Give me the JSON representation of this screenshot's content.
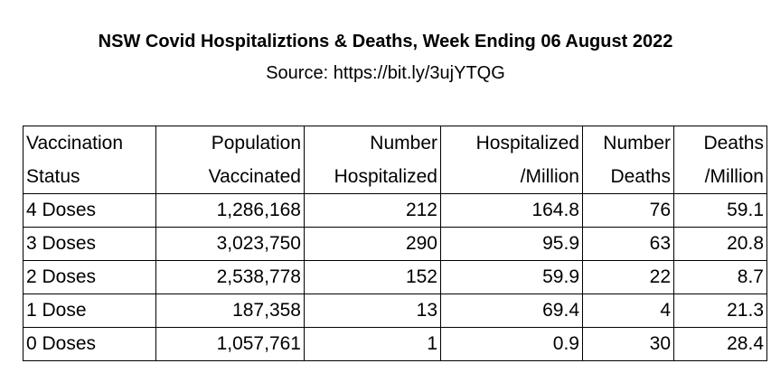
{
  "header": {
    "title": "NSW Covid Hospitaliztions & Deaths, Week Ending 06 August 2022",
    "source": "Source: https://bit.ly/3ujYTQG"
  },
  "table": {
    "columns": [
      {
        "line1": "Vaccination",
        "line2": "Status"
      },
      {
        "line1": "Population",
        "line2": "Vaccinated"
      },
      {
        "line1": "Number",
        "line2": "Hospitalized"
      },
      {
        "line1": "Hospitalized",
        "line2": "/Million"
      },
      {
        "line1": "Number",
        "line2": "Deaths"
      },
      {
        "line1": "Deaths",
        "line2": "/Million"
      }
    ],
    "rows": [
      {
        "status": "4 Doses",
        "population": "1,286,168",
        "hospitalized": "212",
        "hosp_per_million": "164.8",
        "deaths": "76",
        "deaths_per_million": "59.1"
      },
      {
        "status": "3 Doses",
        "population": "3,023,750",
        "hospitalized": "290",
        "hosp_per_million": "95.9",
        "deaths": "63",
        "deaths_per_million": "20.8"
      },
      {
        "status": "2 Doses",
        "population": "2,538,778",
        "hospitalized": "152",
        "hosp_per_million": "59.9",
        "deaths": "22",
        "deaths_per_million": "8.7"
      },
      {
        "status": "1 Dose",
        "population": "187,358",
        "hospitalized": "13",
        "hosp_per_million": "69.4",
        "deaths": "4",
        "deaths_per_million": "21.3"
      },
      {
        "status": "0 Doses",
        "population": "1,057,761",
        "hospitalized": "1",
        "hosp_per_million": "0.9",
        "deaths": "30",
        "deaths_per_million": "28.4"
      }
    ]
  }
}
